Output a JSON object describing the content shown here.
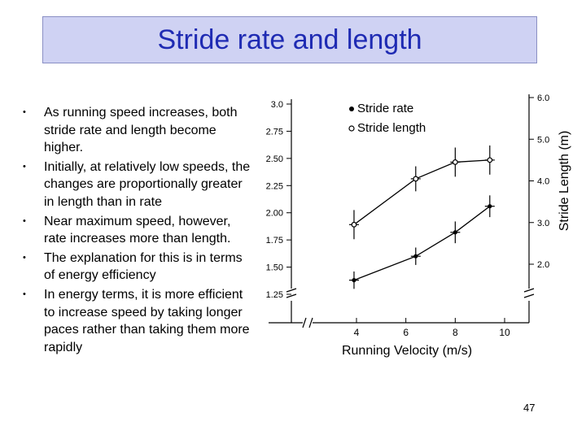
{
  "slide": {
    "title": "Stride rate and length",
    "page_number": "47",
    "bullet_symbol": "•",
    "bullets": [
      "As running speed increases, both stride rate and length become higher.",
      "Initially, at relatively low speeds, the changes are proportionally greater in length than in rate",
      "Near maximum speed, however, rate increases more than length.",
      "The explanation for this is in terms of energy efficiency",
      "In energy terms, it is more efficient to increase speed by taking longer paces rather than taking them more rapidly"
    ]
  },
  "chart_data": {
    "type": "line",
    "xlabel": "Running Velocity (m/s)",
    "ylabel_right": "Stride Length (m)",
    "ylabel_left": "",
    "x_ticks": [
      "4",
      "6",
      "8",
      "10"
    ],
    "y_left_ticks": [
      "3.0",
      "2.75",
      "2.50",
      "2.25",
      "2.00",
      "1.75",
      "1.50",
      "1.25"
    ],
    "y_right_ticks": [
      "6.0",
      "5.0",
      "4.0",
      "3.0",
      "2.0"
    ],
    "y_left_lim": [
      1.25,
      3.0
    ],
    "y_right_lim": [
      2.0,
      6.0
    ],
    "x_lim": [
      4,
      10
    ],
    "axis_breaks": true,
    "legend_position": "top-left",
    "series": [
      {
        "name": "Stride rate",
        "axis": "left",
        "marker": "filled",
        "x": [
          3.9,
          6.4,
          8.0,
          9.4
        ],
        "y": [
          1.38,
          1.6,
          1.82,
          2.06
        ],
        "err": [
          0.08,
          0.08,
          0.1,
          0.1
        ]
      },
      {
        "name": "Stride length",
        "axis": "right",
        "marker": "open",
        "x": [
          3.9,
          6.4,
          8.0,
          9.4
        ],
        "y": [
          2.95,
          4.05,
          4.45,
          4.5
        ],
        "err": [
          0.35,
          0.3,
          0.35,
          0.35
        ]
      }
    ]
  }
}
